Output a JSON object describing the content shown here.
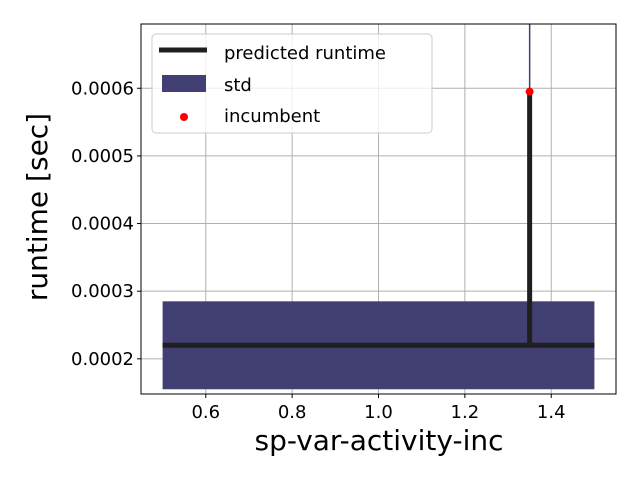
{
  "chart_data": {
    "type": "line",
    "xlabel": "sp-var-activity-inc",
    "ylabel": "runtime [sec]",
    "xlim": [
      0.45,
      1.55
    ],
    "ylim": [
      0.000148,
      0.000695
    ],
    "x_ticks": [
      0.6,
      0.8,
      1.0,
      1.2,
      1.4
    ],
    "y_ticks": [
      0.0002,
      0.0003,
      0.0004,
      0.0005,
      0.0006
    ],
    "x_tick_labels": [
      "0.6",
      "0.8",
      "1.0",
      "1.2",
      "1.4"
    ],
    "y_tick_labels": [
      "0.0002",
      "0.0003",
      "0.0004",
      "0.0005",
      "0.0006"
    ],
    "grid": true,
    "legend_position": "top-left",
    "colors": {
      "predicted": "#1f1f1f",
      "std": "#423f72",
      "incumbent": "#ff0000",
      "grid": "#b0b0b0"
    },
    "series": [
      {
        "name": "predicted runtime",
        "kind": "line",
        "points": [
          {
            "x": 0.5,
            "y": 0.00022
          },
          {
            "x": 1.35,
            "y": 0.00022
          },
          {
            "x": 1.35,
            "y": 0.000595
          },
          {
            "x": 1.35,
            "y": 0.00022
          },
          {
            "x": 1.5,
            "y": 0.00022
          }
        ]
      },
      {
        "name": "std",
        "kind": "band",
        "x0": 0.5,
        "x1": 1.5,
        "y_low": 0.000155,
        "y_high": 0.000285,
        "spike_x": 1.35,
        "spike_low": 0.000595,
        "spike_high": 0.000695
      },
      {
        "name": "incumbent",
        "kind": "scatter",
        "points": [
          {
            "x": 1.35,
            "y": 0.000595
          }
        ]
      }
    ]
  }
}
